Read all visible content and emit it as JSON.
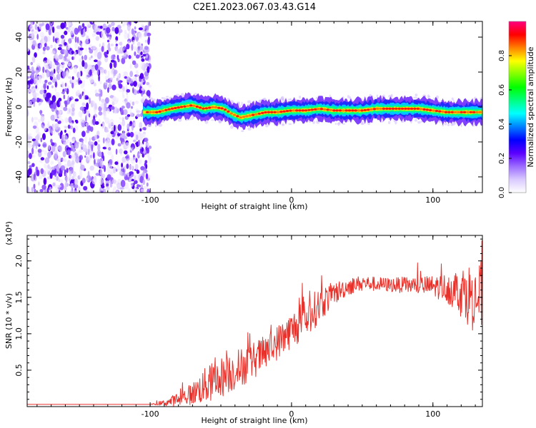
{
  "figure": {
    "title": "C2E1.2023.067.03.43.G14"
  },
  "chart_data": [
    {
      "type": "heatmap",
      "xlabel": "Height of straight line (km)",
      "ylabel": "Frequency (Hz)",
      "xlim": [
        -187,
        135
      ],
      "ylim": [
        -49,
        49
      ],
      "xticks": [
        -100,
        0,
        100
      ],
      "yticks": [
        -40,
        -20,
        0,
        20,
        40
      ],
      "grid": false,
      "colorbar": {
        "label": "Normalized spectral amplitude",
        "range": [
          0.0,
          1.0
        ],
        "ticks": [
          "0.0",
          "0.2",
          "0.4",
          "0.6",
          "0.8"
        ],
        "colors": [
          "#ffffff",
          "#d9c9ff",
          "#9b6bff",
          "#5a00ff",
          "#0000ff",
          "#0080ff",
          "#00ffff",
          "#00ff80",
          "#00ff00",
          "#80ff00",
          "#ffff00",
          "#ff8000",
          "#ff0000",
          "#ff0080"
        ]
      },
      "noise_region_x": [
        -187,
        -100
      ],
      "ridge_x": [
        -105,
        -95,
        -85,
        -78,
        -70,
        -62,
        -55,
        -48,
        -42,
        -36,
        -30,
        -24,
        -18,
        -10,
        0,
        10,
        20,
        30,
        40,
        50,
        60,
        70,
        80,
        90,
        100,
        110,
        120,
        130,
        135
      ],
      "ridge_frequency": [
        -3,
        -3,
        -1,
        0,
        1,
        -1,
        0,
        -1,
        -4,
        -6,
        -5,
        -4,
        -3,
        -3,
        -2,
        -2,
        -1,
        -2,
        -2,
        -2,
        -1,
        -1,
        -1,
        -1,
        -2,
        -3,
        -3,
        -3,
        -3
      ]
    },
    {
      "type": "line",
      "xlabel": "Height of straight line (km)",
      "ylabel": "SNR (10 * v/v)",
      "y_multiplier": "(x10⁴)",
      "xlim": [
        -187,
        135
      ],
      "ylim": [
        0,
        23500
      ],
      "xticks": [
        -100,
        0,
        100
      ],
      "yticks": [
        5000,
        10000,
        15000,
        20000
      ],
      "ytick_labels": [
        "0.5",
        "1.0",
        "1.5",
        "2.0"
      ],
      "grid": false,
      "series": [
        {
          "color": "#e8312a",
          "x": [
            -187,
            -100,
            -90,
            -80,
            -70,
            -60,
            -50,
            -40,
            -30,
            -20,
            -10,
            0,
            10,
            20,
            30,
            40,
            50,
            60,
            70,
            80,
            90,
            100,
            110,
            120,
            130,
            135
          ],
          "y": [
            300,
            300,
            500,
            1000,
            1800,
            3000,
            4000,
            5000,
            6000,
            7200,
            8800,
            10500,
            12000,
            14000,
            15500,
            16500,
            17000,
            16800,
            16700,
            16700,
            16600,
            16500,
            16300,
            15800,
            15000,
            15000
          ],
          "noise_amplitude": [
            0,
            0,
            400,
            1000,
            1500,
            2600,
            2800,
            2800,
            2600,
            2400,
            2400,
            2500,
            2800,
            2400,
            1600,
            1200,
            1000,
            1000,
            1000,
            1100,
            1300,
            1500,
            2000,
            3500,
            5000,
            5000
          ]
        }
      ]
    }
  ]
}
